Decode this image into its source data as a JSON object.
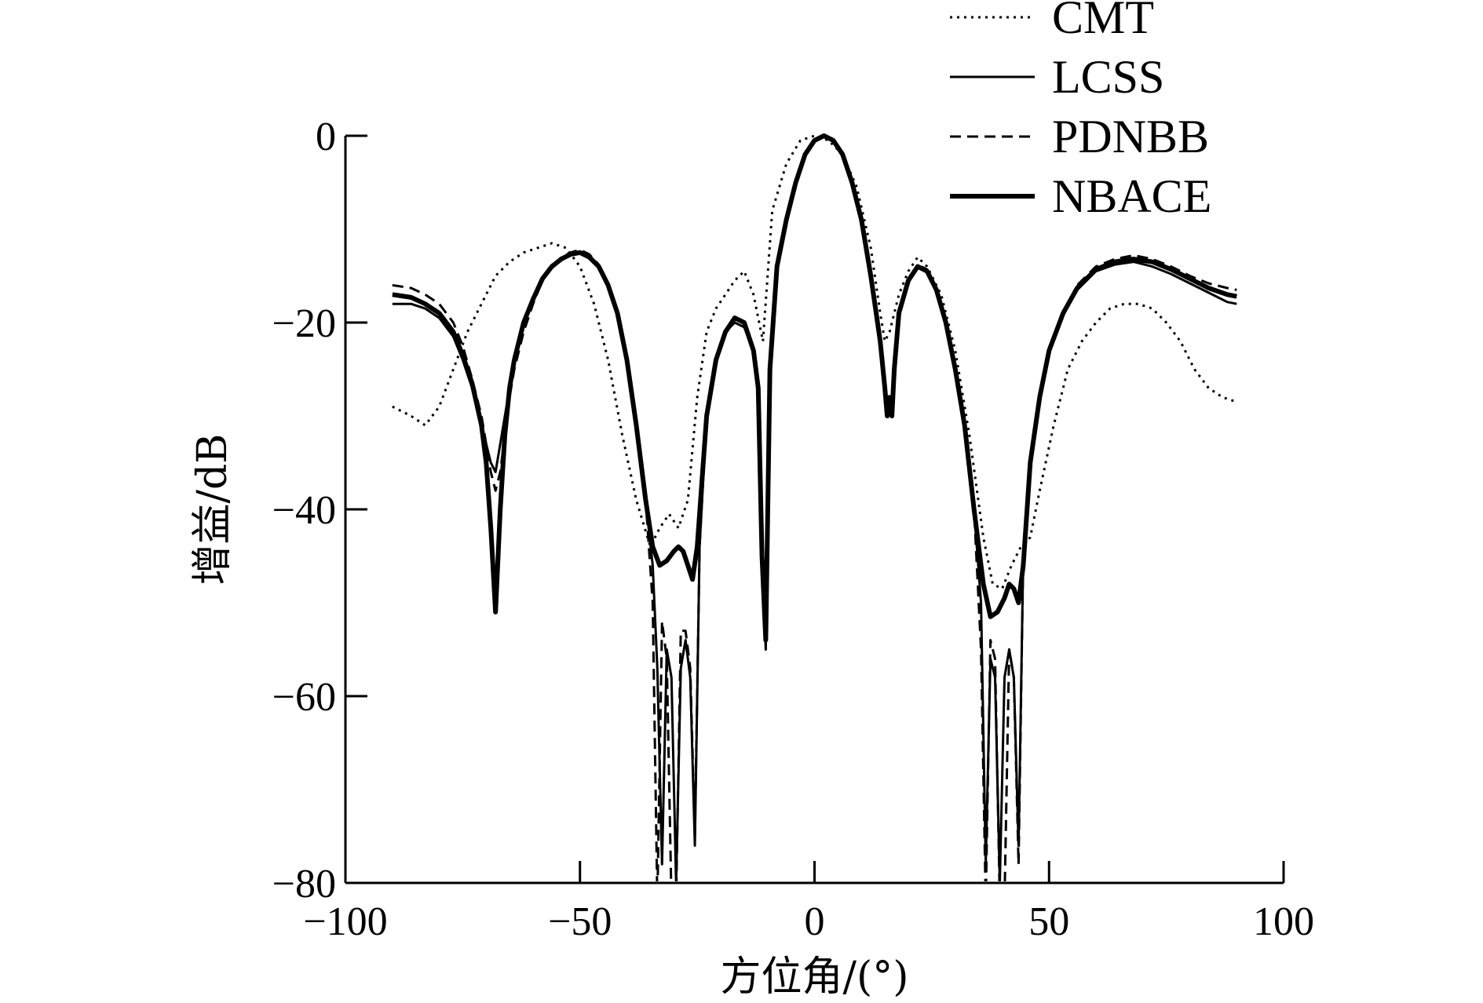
{
  "chart_data": {
    "type": "line",
    "title": "",
    "xlabel": "方位角/(°)",
    "ylabel": "增益/dB",
    "xlim": [
      -100,
      100
    ],
    "ylim": [
      -80,
      0
    ],
    "xticks": [
      -100,
      -50,
      0,
      50,
      100
    ],
    "yticks": [
      0,
      -20,
      -40,
      -60,
      -80
    ],
    "xtick_labels": [
      "−100",
      "−50",
      "0",
      "50",
      "100"
    ],
    "ytick_labels": [
      "0",
      "−20",
      "−40",
      "−60",
      "−80"
    ],
    "grid": false,
    "legend_position": "top-right",
    "series": [
      {
        "name": "CMT",
        "style": "dotted",
        "x": [
          -90,
          -86,
          -83,
          -80,
          -77,
          -74,
          -71,
          -68,
          -65,
          -62,
          -59,
          -56,
          -53,
          -50,
          -47,
          -44,
          -41,
          -38,
          -35,
          -33,
          -31,
          -29,
          -27,
          -25,
          -23,
          -21,
          -19,
          -17,
          -15,
          -13,
          -11,
          -9,
          -6,
          -3,
          0,
          3,
          6,
          9,
          12,
          14,
          15,
          16,
          17,
          18,
          20,
          22,
          24,
          27,
          30,
          33,
          36,
          38,
          40,
          42,
          44,
          46,
          48,
          51,
          54,
          57,
          60,
          63,
          66,
          69,
          72,
          75,
          78,
          81,
          84,
          87,
          90
        ],
        "y": [
          -29,
          -30,
          -31,
          -29,
          -25,
          -21,
          -18,
          -15,
          -13.5,
          -12.5,
          -12,
          -11.5,
          -12,
          -14,
          -18,
          -24,
          -32,
          -39,
          -44,
          -42,
          -40.5,
          -42,
          -39,
          -28,
          -21,
          -18.5,
          -17,
          -15.5,
          -14.5,
          -17,
          -22,
          -8,
          -3,
          -0.5,
          0,
          -0.5,
          -2,
          -5.5,
          -12,
          -19,
          -22,
          -21,
          -19,
          -17,
          -14.5,
          -13,
          -14,
          -17,
          -23,
          -32,
          -43,
          -48,
          -48.5,
          -46,
          -44,
          -43,
          -38,
          -31,
          -25,
          -22,
          -20,
          -18.5,
          -18,
          -18,
          -18.5,
          -20,
          -22,
          -25,
          -27,
          -28,
          -28.5
        ]
      },
      {
        "name": "LCSS",
        "style": "solid-thin",
        "x": [
          -90,
          -86,
          -83,
          -80,
          -77,
          -75,
          -73,
          -71,
          -70,
          -69,
          -68,
          -67,
          -66,
          -65,
          -64,
          -62,
          -60,
          -58,
          -56,
          -54,
          -52,
          -50,
          -48,
          -46,
          -44,
          -42,
          -40,
          -38,
          -36,
          -34.5,
          -33.5,
          -32.5,
          -31.5,
          -30.5,
          -29.5,
          -28.5,
          -27.5,
          -26.5,
          -25.5,
          -24.5,
          -23,
          -21,
          -19,
          -17,
          -15,
          -13,
          -12,
          -11.2,
          -10.4,
          -9.5,
          -8,
          -6,
          -4,
          -2,
          0,
          2,
          4,
          6,
          8,
          10,
          12,
          14,
          15,
          15.5,
          16,
          16.5,
          17,
          18,
          20,
          22,
          24,
          26,
          28,
          30,
          32,
          34,
          35.5,
          36.5,
          37.5,
          38.5,
          39.5,
          40.5,
          41.5,
          42.5,
          43.5,
          44.5,
          46,
          48,
          50,
          53,
          56,
          60,
          64,
          68,
          72,
          76,
          80,
          84,
          88,
          90
        ],
        "y": [
          -18,
          -18,
          -18.5,
          -19.5,
          -21.5,
          -24,
          -27,
          -31,
          -33,
          -35,
          -36,
          -33,
          -30,
          -27,
          -24,
          -20,
          -17.5,
          -15.5,
          -14,
          -13.2,
          -12.8,
          -12.5,
          -13,
          -14,
          -16,
          -19,
          -24,
          -31,
          -39,
          -46,
          -57,
          -78,
          -55,
          -58,
          -80,
          -57,
          -54,
          -58,
          -76,
          -44,
          -30,
          -24,
          -21,
          -20,
          -20.5,
          -23,
          -27,
          -45,
          -55,
          -25,
          -14,
          -9,
          -5,
          -2,
          -0.5,
          0,
          -0.5,
          -2,
          -5,
          -9,
          -15,
          -22,
          -27,
          -30,
          -28,
          -30,
          -25,
          -19,
          -15.5,
          -14,
          -14.5,
          -16.5,
          -20,
          -25,
          -31,
          -40,
          -50,
          -78,
          -56,
          -58,
          -80,
          -58,
          -55,
          -58,
          -76,
          -45,
          -35,
          -28,
          -23,
          -19,
          -16.5,
          -14.5,
          -13.8,
          -13.5,
          -14,
          -14.8,
          -15.8,
          -16.8,
          -17.8,
          -18
        ]
      },
      {
        "name": "PDNBB",
        "style": "dashed",
        "x": [
          -90,
          -86,
          -83,
          -80,
          -77,
          -75,
          -73,
          -71,
          -70,
          -69,
          -68,
          -67,
          -66,
          -65,
          -64,
          -62,
          -60,
          -58,
          -56,
          -54,
          -52,
          -50,
          -48,
          -46,
          -44,
          -42,
          -40,
          -38,
          -36,
          -34.5,
          -33.5,
          -32.5,
          -31.5,
          -30.5,
          -29.5,
          -28.5,
          -27.5,
          -26.5,
          -25.5,
          -24.5,
          -23,
          -21,
          -19,
          -17,
          -15,
          -13,
          -12,
          -11.2,
          -10.4,
          -9.5,
          -8,
          -6,
          -4,
          -2,
          0,
          2,
          4,
          6,
          8,
          10,
          12,
          14,
          15,
          15.5,
          16,
          16.5,
          17,
          18,
          20,
          22,
          24,
          26,
          28,
          30,
          32,
          34,
          35.5,
          36.5,
          37.5,
          38.5,
          39.5,
          40.5,
          41.5,
          42.5,
          43.5,
          44.5,
          46,
          48,
          50,
          53,
          56,
          60,
          64,
          68,
          72,
          76,
          80,
          84,
          88,
          90
        ],
        "y": [
          -16,
          -16.3,
          -17,
          -18,
          -20,
          -22.5,
          -26,
          -30,
          -33,
          -36,
          -38,
          -36,
          -32,
          -28,
          -25,
          -21,
          -18,
          -15.5,
          -14,
          -13,
          -12.5,
          -12.2,
          -12.7,
          -13.8,
          -16,
          -19,
          -24,
          -31,
          -39,
          -50,
          -82,
          -52,
          -56,
          -82,
          -82,
          -53,
          -53,
          -57,
          -75,
          -44,
          -30,
          -24,
          -21,
          -19.5,
          -20,
          -23,
          -27,
          -45,
          -55,
          -25,
          -14,
          -9,
          -5,
          -2,
          -0.5,
          0,
          -0.5,
          -2,
          -5,
          -9,
          -15,
          -22,
          -27,
          -30,
          -28,
          -30,
          -25,
          -19,
          -15.5,
          -13.8,
          -14.3,
          -16.3,
          -20,
          -25,
          -31,
          -40,
          -55,
          -82,
          -54,
          -56,
          -82,
          -82,
          -55,
          -58,
          -78,
          -45,
          -35,
          -28,
          -23,
          -19,
          -16,
          -14,
          -13.2,
          -12.8,
          -13.2,
          -14,
          -15,
          -15.8,
          -16.3,
          -16.5
        ]
      },
      {
        "name": "NBACE",
        "style": "solid-thick",
        "x": [
          -90,
          -86,
          -83,
          -80,
          -77,
          -75,
          -73,
          -71,
          -70,
          -69,
          -68,
          -67,
          -66,
          -65,
          -64,
          -62,
          -60,
          -58,
          -56,
          -54,
          -52,
          -50,
          -48,
          -46,
          -44,
          -42,
          -40,
          -38,
          -36,
          -34.5,
          -33,
          -31.5,
          -30,
          -29,
          -28,
          -27,
          -26,
          -25,
          -23,
          -21,
          -19,
          -17,
          -15,
          -13,
          -12,
          -11.2,
          -10.4,
          -9.5,
          -8,
          -6,
          -4,
          -2,
          0,
          2,
          4,
          6,
          8,
          10,
          12,
          14,
          15,
          15.5,
          16,
          16.5,
          17,
          18,
          20,
          22,
          24,
          26,
          28,
          30,
          32,
          34,
          36,
          37.5,
          39,
          40.5,
          41.5,
          42.5,
          43.5,
          44.5,
          46,
          48,
          50,
          53,
          56,
          60,
          64,
          68,
          72,
          76,
          80,
          84,
          88,
          90
        ],
        "y": [
          -17,
          -17.3,
          -18,
          -19,
          -21,
          -23.5,
          -26.5,
          -31,
          -35,
          -42,
          -51,
          -40,
          -32,
          -27,
          -24,
          -20,
          -17.5,
          -15.3,
          -14,
          -13.2,
          -12.7,
          -12.5,
          -13,
          -14,
          -16,
          -19,
          -24,
          -31,
          -39,
          -44,
          -46,
          -45.5,
          -44.5,
          -44,
          -44.5,
          -46,
          -47.5,
          -44,
          -30,
          -24,
          -21,
          -19.5,
          -20,
          -23,
          -27,
          -45,
          -54,
          -25,
          -14,
          -9,
          -5,
          -2,
          -0.5,
          0,
          -0.5,
          -2,
          -5,
          -9,
          -15,
          -22,
          -27,
          -30,
          -28,
          -30,
          -25,
          -19,
          -15.5,
          -14,
          -14.5,
          -16.5,
          -20,
          -25,
          -31,
          -40,
          -48,
          -51.5,
          -51,
          -49.5,
          -48,
          -48.5,
          -50,
          -46,
          -35,
          -28,
          -23,
          -19,
          -16.3,
          -14.3,
          -13.5,
          -13.2,
          -13.5,
          -14.3,
          -15.3,
          -16.3,
          -17,
          -17.2
        ]
      }
    ]
  }
}
